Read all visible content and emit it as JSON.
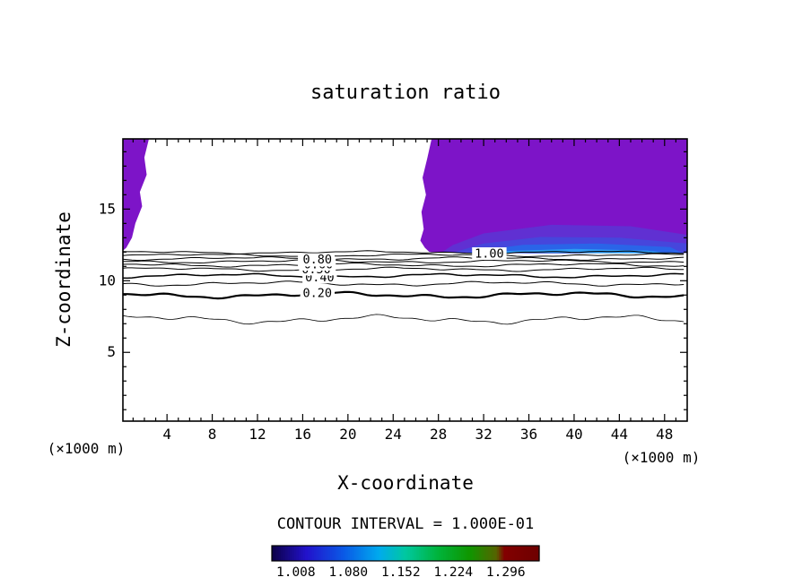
{
  "chart_data": {
    "type": "contour",
    "title": "saturation ratio",
    "xlabel": "X-coordinate",
    "ylabel": "Z-coordinate",
    "x_unit_label_left": "(×1000 m)",
    "x_unit_label_right": "(×1000 m)",
    "contour_interval_text": "CONTOUR INTERVAL = 1.000E-01",
    "contour_interval": 0.1,
    "xlim": [
      0.1,
      50.0
    ],
    "zlim": [
      0.2,
      19.9
    ],
    "x_ticks": [
      4,
      8,
      12,
      16,
      20,
      24,
      28,
      32,
      36,
      40,
      44,
      48
    ],
    "z_ticks": [
      5,
      10,
      15
    ],
    "grid": false,
    "contour_lines": [
      {
        "level": "0.10",
        "z": 7.3,
        "amp": 0.18,
        "phase": 0.8,
        "w": 0.8
      },
      {
        "level": "0.20",
        "z": 9.0,
        "amp": 0.13,
        "phase": 2.1,
        "w": 2.2
      },
      {
        "level": "0.30",
        "z": 9.8,
        "amp": 0.1,
        "phase": 3.6,
        "w": 1.0
      },
      {
        "level": "0.40",
        "z": 10.35,
        "amp": 0.09,
        "phase": 5.0,
        "w": 1.5
      },
      {
        "level": "0.50",
        "z": 10.8,
        "amp": 0.08,
        "phase": 0.3,
        "w": 1.0
      },
      {
        "level": "0.60",
        "z": 11.1,
        "amp": 0.08,
        "phase": 1.7,
        "w": 1.0
      },
      {
        "level": "0.70",
        "z": 11.35,
        "amp": 0.07,
        "phase": 2.9,
        "w": 1.0
      },
      {
        "level": "0.80",
        "z": 11.55,
        "amp": 0.07,
        "phase": 4.4,
        "w": 1.0
      },
      {
        "level": "0.90",
        "z": 11.78,
        "amp": 0.06,
        "phase": 5.8,
        "w": 1.0
      },
      {
        "level": "1.00",
        "z": 11.98,
        "amp": 0.06,
        "phase": 1.2,
        "w": 1.0
      }
    ],
    "contour_labels": [
      {
        "text": "0.20",
        "x": 17.3,
        "level": "0.20"
      },
      {
        "text": "0.40",
        "x": 17.5,
        "level": "0.40"
      },
      {
        "text": "0.50",
        "x": 17.2,
        "level": "0.50"
      },
      {
        "text": "0.60",
        "x": 17.4,
        "level": "0.60"
      },
      {
        "text": "0.70",
        "x": 17.1,
        "level": "0.70"
      },
      {
        "text": "0.80",
        "x": 17.3,
        "level": "0.80"
      },
      {
        "text": "1.00",
        "x": 32.5,
        "level": "1.00"
      }
    ],
    "filled_regions": [
      {
        "name": "upper-right-saturated-area",
        "color": "#7d14c8",
        "points": [
          [
            27.4,
            19.9
          ],
          [
            27.0,
            18.5
          ],
          [
            26.6,
            17.2
          ],
          [
            26.9,
            16.0
          ],
          [
            26.5,
            14.8
          ],
          [
            26.7,
            13.6
          ],
          [
            26.4,
            12.8
          ],
          [
            26.8,
            12.3
          ],
          [
            27.2,
            12.0
          ],
          [
            29,
            11.98
          ],
          [
            32,
            11.95
          ],
          [
            36,
            11.9
          ],
          [
            40,
            11.9
          ],
          [
            44,
            11.95
          ],
          [
            47,
            11.9
          ],
          [
            50,
            11.95
          ],
          [
            50,
            19.9
          ]
        ]
      },
      {
        "name": "upper-left-saturated-area",
        "color": "#7d14c8",
        "points": [
          [
            0.1,
            19.9
          ],
          [
            2.4,
            19.9
          ],
          [
            2.0,
            18.6
          ],
          [
            2.2,
            17.4
          ],
          [
            1.6,
            16.2
          ],
          [
            1.8,
            15.2
          ],
          [
            1.2,
            14.0
          ],
          [
            0.9,
            13.0
          ],
          [
            0.4,
            12.3
          ],
          [
            0.1,
            12.1
          ]
        ]
      },
      {
        "name": "saturation-band-2",
        "color": "#6030d2",
        "points": [
          [
            28.3,
            11.98
          ],
          [
            50,
            11.95
          ],
          [
            50,
            13.2
          ],
          [
            45,
            13.8
          ],
          [
            38,
            13.9
          ],
          [
            32,
            13.3
          ],
          [
            29.3,
            12.5
          ]
        ]
      },
      {
        "name": "saturation-band-3",
        "color": "#4646dc",
        "points": [
          [
            29.3,
            11.97
          ],
          [
            50,
            11.93
          ],
          [
            50,
            12.6
          ],
          [
            44,
            13.0
          ],
          [
            37,
            13.05
          ],
          [
            32,
            12.6
          ],
          [
            30.3,
            12.2
          ]
        ]
      },
      {
        "name": "saturation-band-4",
        "color": "#2a64e8",
        "points": [
          [
            30.5,
            11.95
          ],
          [
            49.6,
            11.92
          ],
          [
            48.5,
            12.35
          ],
          [
            42,
            12.6
          ],
          [
            35.5,
            12.5
          ],
          [
            32,
            12.15
          ]
        ]
      },
      {
        "name": "saturation-band-5",
        "color": "#2e9bf2",
        "points": [
          [
            31.8,
            11.93
          ],
          [
            48.6,
            11.9
          ],
          [
            46.5,
            12.1
          ],
          [
            40,
            12.22
          ],
          [
            34.5,
            12.08
          ]
        ]
      }
    ],
    "colorbar": {
      "tick_labels": [
        "1.008",
        "1.080",
        "1.152",
        "1.224",
        "1.296"
      ],
      "label_color": "#8b1a1a",
      "stops": [
        [
          0,
          "#0c0046"
        ],
        [
          0.13,
          "#2212cc"
        ],
        [
          0.27,
          "#0a5ae6"
        ],
        [
          0.4,
          "#00aaee"
        ],
        [
          0.5,
          "#00c8a0"
        ],
        [
          0.62,
          "#00b43c"
        ],
        [
          0.74,
          "#0f9600"
        ],
        [
          0.84,
          "#566400"
        ],
        [
          0.87,
          "#820000"
        ],
        [
          1,
          "#6e0000"
        ]
      ]
    }
  }
}
